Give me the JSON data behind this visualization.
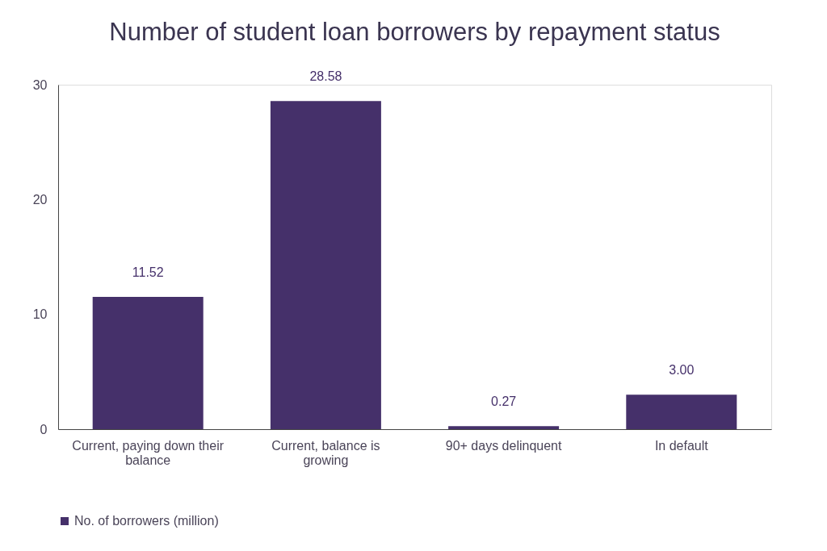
{
  "chart_data": {
    "type": "bar",
    "title": "Number of student loan borrowers by repayment status",
    "categories": [
      "Current, paying down their balance",
      "Current, balance is growing",
      "90+ days delinquent",
      "In default"
    ],
    "series": [
      {
        "name": "No. of borrowers (million)",
        "color": "#45306a",
        "values": [
          11.52,
          28.58,
          0.27,
          3.0
        ],
        "value_labels": [
          "11.52",
          "28.58",
          "0.27",
          "3.00"
        ]
      }
    ],
    "ylim": [
      0,
      30
    ],
    "yticks": [
      0,
      10,
      20,
      30
    ],
    "grid": false,
    "legend": "bottom"
  }
}
